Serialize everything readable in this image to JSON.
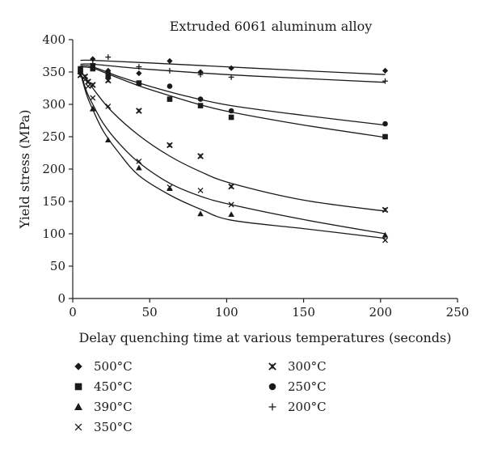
{
  "chart_data": {
    "type": "scatter",
    "title": "Extruded 6061 aluminum alloy",
    "xlabel": "Delay quenching time at various temperatures (seconds)",
    "ylabel": "Yield stress (MPa)",
    "xlim": [
      0,
      250
    ],
    "ylim": [
      0,
      400
    ],
    "xticks": [
      0,
      50,
      100,
      150,
      200,
      250
    ],
    "yticks": [
      0,
      50,
      100,
      150,
      200,
      250,
      300,
      350,
      400
    ],
    "grid": false,
    "legend_position": "bottom",
    "series": [
      {
        "name": "500°C",
        "marker": "diamond",
        "x": [
          5,
          13,
          23,
          43,
          63,
          83,
          103,
          203
        ],
        "y": [
          355,
          370,
          352,
          348,
          367,
          350,
          356,
          352
        ],
        "fit_x": [
          5,
          13,
          50,
          100,
          150,
          203
        ],
        "fit_y": [
          368,
          368,
          364,
          358,
          352,
          346
        ]
      },
      {
        "name": "450°C",
        "marker": "square",
        "x": [
          5,
          13,
          23,
          43,
          63,
          83,
          103,
          203
        ],
        "y": [
          355,
          355,
          343,
          333,
          308,
          298,
          280,
          250
        ],
        "fit_x": [
          5,
          13,
          25,
          45,
          65,
          85,
          105,
          150,
          203
        ],
        "fit_y": [
          358,
          356,
          345,
          327,
          312,
          298,
          287,
          268,
          249
        ]
      },
      {
        "name": "390°C",
        "marker": "triangle",
        "x": [
          5,
          13,
          23,
          43,
          63,
          83,
          103,
          203
        ],
        "y": [
          350,
          293,
          245,
          202,
          170,
          131,
          130,
          98
        ],
        "fit_x": [
          5,
          9,
          13,
          20,
          30,
          43,
          63,
          83,
          103,
          150,
          203
        ],
        "fit_y": [
          348,
          315,
          292,
          258,
          225,
          190,
          160,
          138,
          121,
          108,
          93
        ]
      },
      {
        "name": "350°C",
        "marker": "x",
        "x": [
          5,
          8,
          10,
          13,
          23,
          43,
          63,
          83,
          103,
          203
        ],
        "y": [
          345,
          338,
          328,
          310,
          297,
          212,
          172,
          167,
          145,
          90
        ],
        "fit_x": [
          5,
          9,
          13,
          20,
          30,
          43,
          63,
          83,
          103,
          150,
          203
        ],
        "fit_y": [
          350,
          320,
          300,
          270,
          240,
          210,
          178,
          158,
          145,
          122,
          100
        ]
      },
      {
        "name": "300°C",
        "marker": "star",
        "x": [
          5,
          8,
          10,
          13,
          23,
          43,
          63,
          83,
          103,
          203
        ],
        "y": [
          345,
          343,
          335,
          330,
          337,
          290,
          237,
          220,
          173,
          137
        ],
        "fit_x": [
          5,
          13,
          25,
          43,
          63,
          83,
          103,
          150,
          203
        ],
        "fit_y": [
          352,
          325,
          290,
          252,
          220,
          196,
          178,
          152,
          135
        ]
      },
      {
        "name": "250°C",
        "marker": "circle",
        "x": [
          5,
          13,
          23,
          43,
          63,
          83,
          103,
          203
        ],
        "y": [
          352,
          360,
          348,
          332,
          328,
          308,
          290,
          270
        ],
        "fit_x": [
          5,
          13,
          30,
          50,
          75,
          103,
          150,
          203
        ],
        "fit_y": [
          360,
          358,
          343,
          328,
          312,
          298,
          283,
          268
        ]
      },
      {
        "name": "200°C",
        "marker": "plus",
        "x": [
          5,
          13,
          23,
          43,
          63,
          83,
          103,
          203
        ],
        "y": [
          350,
          363,
          373,
          358,
          352,
          346,
          342,
          336
        ],
        "fit_x": [
          5,
          13,
          50,
          100,
          150,
          203
        ],
        "fit_y": [
          362,
          362,
          354,
          346,
          340,
          334
        ]
      }
    ]
  }
}
